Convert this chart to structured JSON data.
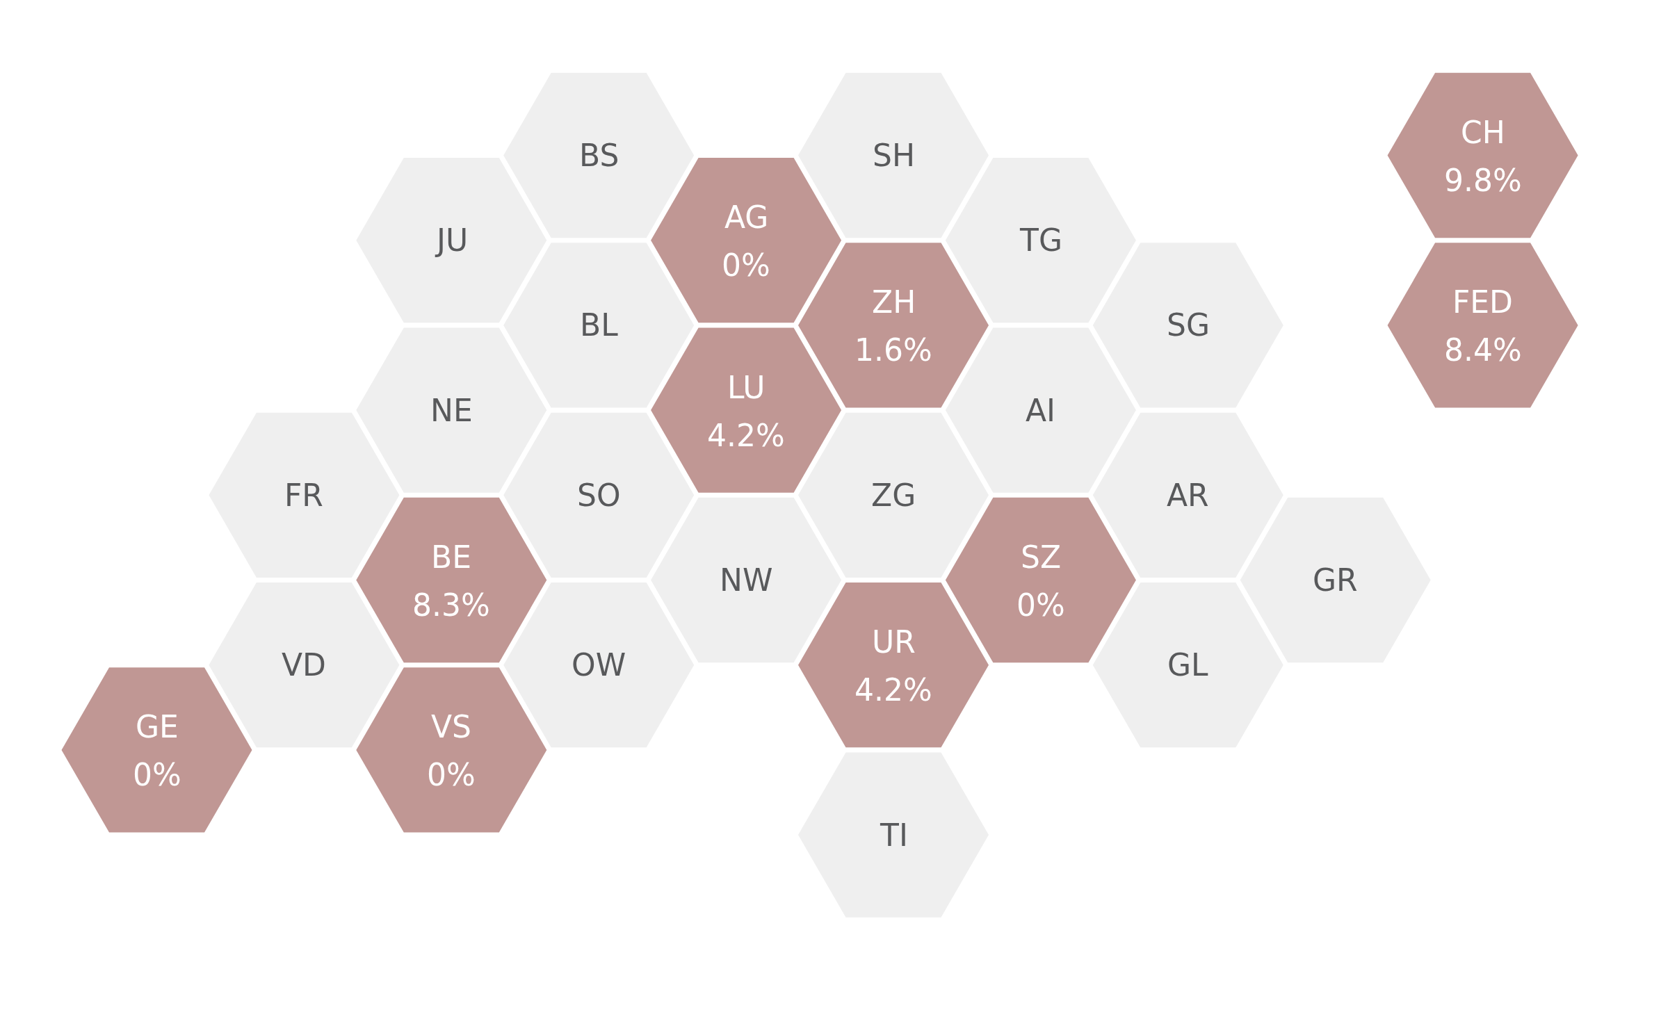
{
  "chart_data": {
    "type": "other",
    "categories": [
      "BS",
      "SH",
      "CH",
      "JU",
      "AG",
      "TG",
      "BL",
      "ZH",
      "SG",
      "FED",
      "NE",
      "LU",
      "AI",
      "FR",
      "SO",
      "ZG",
      "AR",
      "BE",
      "NW",
      "SZ",
      "GR",
      "VD",
      "OW",
      "UR",
      "GL",
      "GE",
      "VS",
      "TI"
    ],
    "values": [
      null,
      null,
      9.8,
      null,
      0,
      null,
      null,
      1.6,
      null,
      8.4,
      null,
      4.2,
      null,
      null,
      null,
      null,
      null,
      8.3,
      null,
      0,
      null,
      null,
      null,
      4.2,
      null,
      0,
      0,
      null
    ],
    "value_labels": [
      null,
      null,
      "9.8%",
      null,
      "0%",
      null,
      null,
      "1.6%",
      null,
      "8.4%",
      null,
      "4.2%",
      null,
      null,
      null,
      null,
      null,
      "8.3%",
      null,
      "0%",
      null,
      null,
      null,
      "4.2%",
      null,
      "0%",
      "0%",
      null
    ],
    "colors": [
      "#efefef",
      "#efefef",
      "#c09794",
      "#efefef",
      "#c09794",
      "#efefef",
      "#efefef",
      "#c09794",
      "#efefef",
      "#c09794",
      "#efefef",
      "#c09794",
      "#efefef",
      "#efefef",
      "#efefef",
      "#efefef",
      "#efefef",
      "#c09794",
      "#efefef",
      "#c09794",
      "#efefef",
      "#efefef",
      "#efefef",
      "#c09794",
      "#efefef",
      "#c09794",
      "#c09794",
      "#efefef"
    ]
  }
}
